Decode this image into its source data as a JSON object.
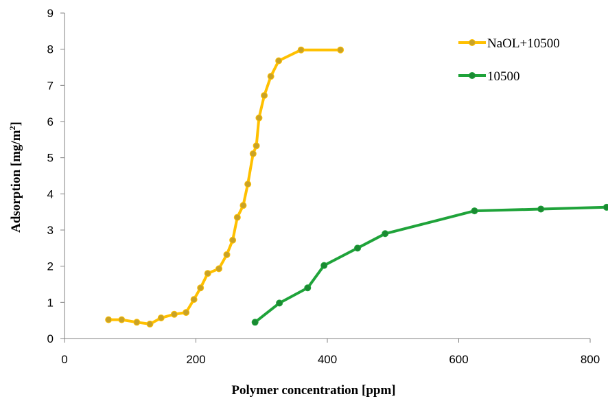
{
  "chart_data": {
    "type": "line",
    "xlabel": "Polymer concentration [ppm]",
    "ylabel_main": "Adsorption [mg/m",
    "ylabel_sup": "2",
    "ylabel_tail": "]",
    "xlim": [
      0,
      800
    ],
    "ylim": [
      0,
      9
    ],
    "xticks": [
      0,
      200,
      400,
      600,
      800
    ],
    "yticks": [
      0,
      1,
      2,
      3,
      4,
      5,
      6,
      7,
      8,
      9
    ],
    "grid": false,
    "legend_position": "top-right",
    "series": [
      {
        "name": "NaOL+10500",
        "color": "#FFC000",
        "marker_color": "#C9A227",
        "x": [
          67,
          87,
          110,
          130,
          147,
          167,
          185,
          197,
          207,
          218,
          235,
          247,
          256,
          263,
          272,
          279,
          287,
          292,
          296,
          304,
          314,
          326,
          360,
          420
        ],
        "y": [
          0.52,
          0.52,
          0.45,
          0.4,
          0.57,
          0.67,
          0.72,
          1.08,
          1.4,
          1.8,
          1.93,
          2.32,
          2.72,
          3.35,
          3.68,
          4.27,
          5.11,
          5.33,
          6.1,
          6.72,
          7.25,
          7.68,
          7.98,
          7.98
        ]
      },
      {
        "name": "10500",
        "color": "#1FA33A",
        "marker_color": "#1A8A32",
        "x": [
          290,
          327,
          370,
          395,
          446,
          488,
          624,
          725,
          825
        ],
        "y": [
          0.45,
          0.98,
          1.4,
          2.02,
          2.5,
          2.9,
          3.53,
          3.58,
          3.63
        ]
      }
    ]
  }
}
